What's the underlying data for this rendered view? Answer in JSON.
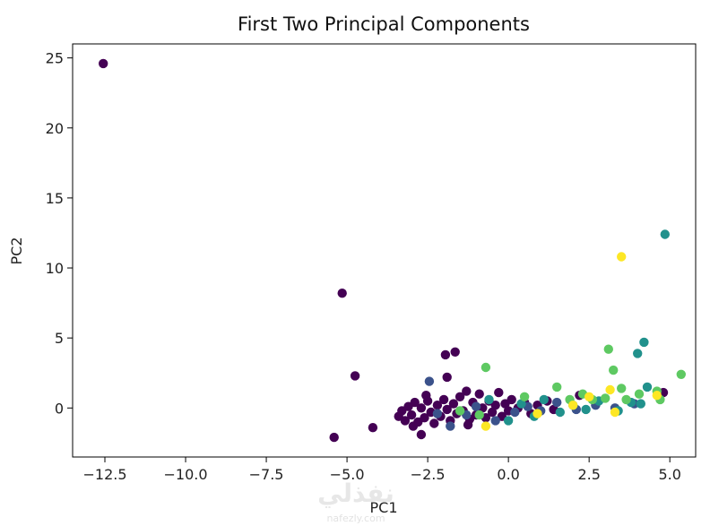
{
  "chart_data": {
    "type": "scatter",
    "title": "First Two Principal Components",
    "xlabel": "PC1",
    "ylabel": "PC2",
    "xlim": [
      -13.5,
      5.8
    ],
    "ylim": [
      -3.5,
      26
    ],
    "xticks": [
      -12.5,
      -10.0,
      -7.5,
      -5.0,
      -2.5,
      0.0,
      2.5,
      5.0
    ],
    "xtick_labels": [
      "−12.5",
      "−10.0",
      "−7.5",
      "−5.0",
      "−2.5",
      "0.0",
      "2.5",
      "5.0"
    ],
    "yticks": [
      0,
      5,
      10,
      15,
      20,
      25
    ],
    "ytick_labels": [
      "0",
      "5",
      "10",
      "15",
      "20",
      "25"
    ],
    "grid": false,
    "legend": "none",
    "colormap": "viridis",
    "class_colors": [
      "#440154",
      "#3b528b",
      "#21918c",
      "#5ec962",
      "#fde725"
    ],
    "points": [
      {
        "x": -12.55,
        "y": 24.6,
        "c": 0
      },
      {
        "x": -5.15,
        "y": 8.2,
        "c": 0
      },
      {
        "x": -4.75,
        "y": 2.3,
        "c": 0
      },
      {
        "x": -5.4,
        "y": -2.1,
        "c": 0
      },
      {
        "x": -4.2,
        "y": -1.4,
        "c": 0
      },
      {
        "x": -1.95,
        "y": 3.8,
        "c": 0
      },
      {
        "x": -1.65,
        "y": 4.0,
        "c": 0
      },
      {
        "x": -1.9,
        "y": 2.2,
        "c": 0
      },
      {
        "x": -2.45,
        "y": 1.9,
        "c": 1
      },
      {
        "x": -0.7,
        "y": 2.9,
        "c": 3
      },
      {
        "x": -2.7,
        "y": -1.9,
        "c": 0
      },
      {
        "x": -3.3,
        "y": -0.2,
        "c": 0
      },
      {
        "x": -3.2,
        "y": -0.9,
        "c": 0
      },
      {
        "x": -3.1,
        "y": 0.1,
        "c": 0
      },
      {
        "x": -3.0,
        "y": -0.5,
        "c": 0
      },
      {
        "x": -2.9,
        "y": 0.4,
        "c": 0
      },
      {
        "x": -2.8,
        "y": -1.0,
        "c": 0
      },
      {
        "x": -2.7,
        "y": 0.0,
        "c": 0
      },
      {
        "x": -2.6,
        "y": -0.7,
        "c": 0
      },
      {
        "x": -2.5,
        "y": 0.5,
        "c": 0
      },
      {
        "x": -2.4,
        "y": -0.3,
        "c": 0
      },
      {
        "x": -2.3,
        "y": -1.1,
        "c": 0
      },
      {
        "x": -2.2,
        "y": 0.2,
        "c": 0
      },
      {
        "x": -2.1,
        "y": -0.6,
        "c": 0
      },
      {
        "x": -2.0,
        "y": 0.6,
        "c": 0
      },
      {
        "x": -1.9,
        "y": -0.1,
        "c": 0
      },
      {
        "x": -1.8,
        "y": -0.9,
        "c": 0
      },
      {
        "x": -1.7,
        "y": 0.3,
        "c": 0
      },
      {
        "x": -1.6,
        "y": -0.4,
        "c": 0
      },
      {
        "x": -1.5,
        "y": 0.8,
        "c": 0
      },
      {
        "x": -1.4,
        "y": -0.2,
        "c": 0
      },
      {
        "x": -1.3,
        "y": 1.2,
        "c": 0
      },
      {
        "x": -1.2,
        "y": -0.8,
        "c": 0
      },
      {
        "x": -1.1,
        "y": 0.4,
        "c": 0
      },
      {
        "x": -1.0,
        "y": -0.5,
        "c": 0
      },
      {
        "x": -0.9,
        "y": 1.0,
        "c": 0
      },
      {
        "x": -0.8,
        "y": 0.0,
        "c": 0
      },
      {
        "x": -0.7,
        "y": -0.7,
        "c": 0
      },
      {
        "x": -0.6,
        "y": 0.5,
        "c": 0
      },
      {
        "x": -0.5,
        "y": -0.3,
        "c": 0
      },
      {
        "x": -0.4,
        "y": 0.2,
        "c": 0
      },
      {
        "x": -0.3,
        "y": 1.1,
        "c": 0
      },
      {
        "x": -0.2,
        "y": -0.6,
        "c": 0
      },
      {
        "x": -0.1,
        "y": 0.3,
        "c": 0
      },
      {
        "x": 0.0,
        "y": -0.2,
        "c": 0
      },
      {
        "x": 0.1,
        "y": 0.6,
        "c": 0
      },
      {
        "x": 0.3,
        "y": 0.0,
        "c": 0
      },
      {
        "x": 0.5,
        "y": 0.4,
        "c": 0
      },
      {
        "x": 0.7,
        "y": -0.4,
        "c": 0
      },
      {
        "x": 0.9,
        "y": 0.2,
        "c": 0
      },
      {
        "x": 1.2,
        "y": 0.5,
        "c": 0
      },
      {
        "x": 1.4,
        "y": -0.1,
        "c": 0
      },
      {
        "x": 2.2,
        "y": 0.9,
        "c": 0
      },
      {
        "x": 4.8,
        "y": 1.1,
        "c": 0
      },
      {
        "x": -3.4,
        "y": -0.6,
        "c": 0
      },
      {
        "x": -2.95,
        "y": -1.3,
        "c": 0
      },
      {
        "x": -2.55,
        "y": 0.9,
        "c": 0
      },
      {
        "x": -1.25,
        "y": -1.2,
        "c": 0
      },
      {
        "x": -2.2,
        "y": -0.4,
        "c": 1
      },
      {
        "x": -1.8,
        "y": -1.3,
        "c": 1
      },
      {
        "x": -1.3,
        "y": -0.5,
        "c": 1
      },
      {
        "x": -1.0,
        "y": 0.1,
        "c": 1
      },
      {
        "x": -0.4,
        "y": -0.9,
        "c": 1
      },
      {
        "x": 0.2,
        "y": -0.3,
        "c": 1
      },
      {
        "x": 0.6,
        "y": 0.1,
        "c": 1
      },
      {
        "x": 1.0,
        "y": -0.2,
        "c": 1
      },
      {
        "x": 1.5,
        "y": 0.4,
        "c": 1
      },
      {
        "x": 2.1,
        "y": -0.1,
        "c": 1
      },
      {
        "x": 2.7,
        "y": 0.2,
        "c": 1
      },
      {
        "x": 3.3,
        "y": 0.0,
        "c": 1
      },
      {
        "x": 3.9,
        "y": 0.3,
        "c": 1
      },
      {
        "x": -0.6,
        "y": 0.6,
        "c": 2
      },
      {
        "x": 0.0,
        "y": -0.9,
        "c": 2
      },
      {
        "x": 0.4,
        "y": 0.3,
        "c": 2
      },
      {
        "x": 0.8,
        "y": -0.6,
        "c": 2
      },
      {
        "x": 1.1,
        "y": 0.6,
        "c": 2
      },
      {
        "x": 1.6,
        "y": -0.3,
        "c": 2
      },
      {
        "x": 2.0,
        "y": 0.2,
        "c": 2
      },
      {
        "x": 2.4,
        "y": -0.1,
        "c": 2
      },
      {
        "x": 2.8,
        "y": 0.5,
        "c": 2
      },
      {
        "x": 3.4,
        "y": -0.2,
        "c": 2
      },
      {
        "x": 3.8,
        "y": 0.4,
        "c": 2
      },
      {
        "x": 4.3,
        "y": 1.5,
        "c": 2
      },
      {
        "x": 4.2,
        "y": 4.7,
        "c": 2
      },
      {
        "x": 4.0,
        "y": 3.9,
        "c": 2
      },
      {
        "x": 4.85,
        "y": 12.4,
        "c": 2
      },
      {
        "x": 4.1,
        "y": 0.3,
        "c": 2
      },
      {
        "x": -1.5,
        "y": -0.2,
        "c": 3
      },
      {
        "x": -0.9,
        "y": -0.5,
        "c": 3
      },
      {
        "x": 0.5,
        "y": 0.8,
        "c": 3
      },
      {
        "x": 1.5,
        "y": 1.5,
        "c": 3
      },
      {
        "x": 1.9,
        "y": 0.6,
        "c": 3
      },
      {
        "x": 2.3,
        "y": 1.0,
        "c": 3
      },
      {
        "x": 2.6,
        "y": 0.6,
        "c": 3
      },
      {
        "x": 3.0,
        "y": 0.7,
        "c": 3
      },
      {
        "x": 3.1,
        "y": 4.2,
        "c": 3
      },
      {
        "x": 3.25,
        "y": 2.7,
        "c": 3
      },
      {
        "x": 3.5,
        "y": 1.4,
        "c": 3
      },
      {
        "x": 3.65,
        "y": 0.6,
        "c": 3
      },
      {
        "x": 4.05,
        "y": 1.0,
        "c": 3
      },
      {
        "x": 4.6,
        "y": 1.2,
        "c": 3
      },
      {
        "x": 4.7,
        "y": 0.6,
        "c": 3
      },
      {
        "x": 5.35,
        "y": 2.4,
        "c": 3
      },
      {
        "x": -0.7,
        "y": -1.3,
        "c": 4
      },
      {
        "x": 0.9,
        "y": -0.4,
        "c": 4
      },
      {
        "x": 2.0,
        "y": 0.2,
        "c": 4
      },
      {
        "x": 2.5,
        "y": 0.8,
        "c": 4
      },
      {
        "x": 3.15,
        "y": 1.3,
        "c": 4
      },
      {
        "x": 3.3,
        "y": -0.3,
        "c": 4
      },
      {
        "x": 3.5,
        "y": 10.8,
        "c": 4
      },
      {
        "x": 4.6,
        "y": 0.9,
        "c": 4
      }
    ]
  },
  "watermark": {
    "text_ar": "نفذلي",
    "text_en": "nafezly.com"
  }
}
